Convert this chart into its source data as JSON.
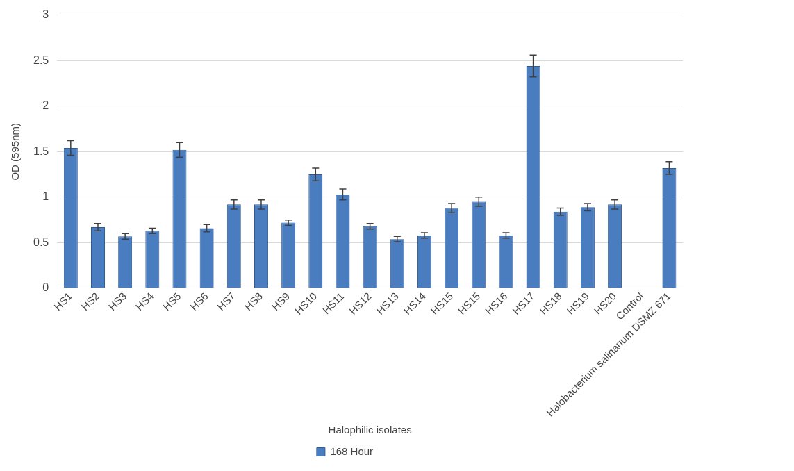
{
  "chart_data": {
    "type": "bar",
    "xlabel": "Halophilic isolates",
    "ylabel": "OD (595nm)",
    "categories": [
      "HS1",
      "HS2",
      "HS3",
      "HS4",
      "HS5",
      "HS6",
      "HS7",
      "HS8",
      "HS9",
      "HS10",
      "HS11",
      "HS12",
      "HS13",
      "HS14",
      "HS15",
      "HS15",
      "HS16",
      "HS17",
      "HS18",
      "HS19",
      "HS20",
      "Control",
      "Halobacterium salinarium DSMZ 671"
    ],
    "series": [
      {
        "name": "168 Hour",
        "color": "#4a7cc0",
        "values": [
          1.54,
          0.67,
          0.57,
          0.63,
          1.52,
          0.66,
          0.92,
          0.92,
          0.72,
          1.25,
          1.03,
          0.68,
          0.54,
          0.58,
          0.88,
          0.95,
          0.58,
          2.44,
          0.84,
          0.89,
          0.92,
          null,
          1.32
        ],
        "errors": [
          0.08,
          0.04,
          0.03,
          0.03,
          0.08,
          0.04,
          0.05,
          0.05,
          0.03,
          0.07,
          0.06,
          0.03,
          0.03,
          0.03,
          0.05,
          0.05,
          0.03,
          0.12,
          0.04,
          0.04,
          0.05,
          null,
          0.07
        ]
      }
    ],
    "ylim": [
      0,
      3
    ],
    "yticks": [
      0,
      0.5,
      1,
      1.5,
      2,
      2.5,
      3
    ],
    "grid": "y",
    "legend": "bottom"
  }
}
